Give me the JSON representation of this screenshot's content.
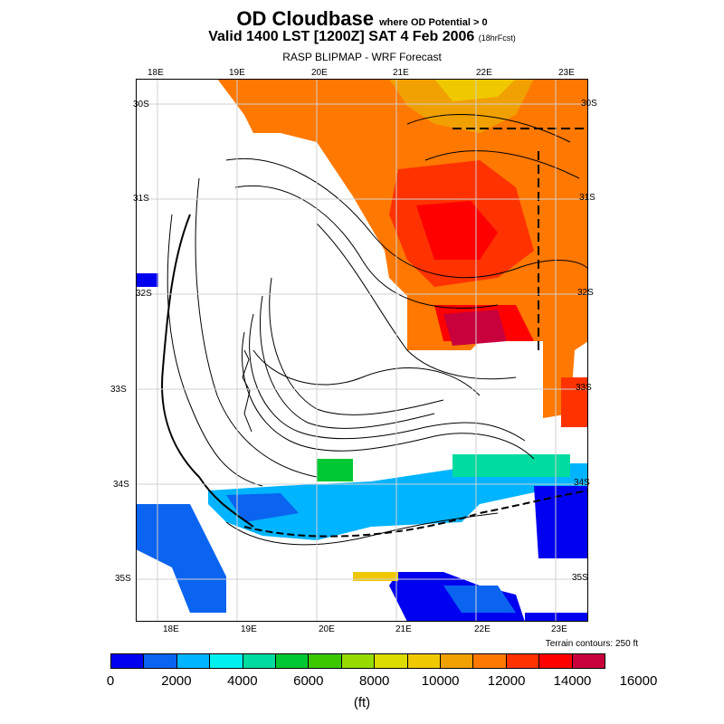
{
  "title": {
    "main": "OD Cloudbase",
    "qualifier": "where OD Potential > 0"
  },
  "valid": {
    "text": "Valid 1400 LST [1200Z] SAT 4 Feb 2006",
    "fcst": "(18hrFcst)"
  },
  "model": "RASP BLIPMAP - WRF Forecast",
  "map": {
    "lon_top": [
      "18E",
      "19E",
      "20E",
      "21E",
      "22E",
      "23E"
    ],
    "lon_bottom": [
      "18E",
      "19E",
      "20E",
      "21E",
      "22E",
      "23E"
    ],
    "lat_left": [
      "30S",
      "31S",
      "32S",
      "33S",
      "34S",
      "35S"
    ],
    "lat_right": [
      "30S",
      "31S",
      "32S",
      "33S",
      "34S",
      "35S"
    ],
    "terrain_note": "Terrain contours: 250 ft"
  },
  "colorbar": {
    "colors": [
      "#0000f0",
      "#0a64f0",
      "#00b4ff",
      "#00f0f0",
      "#00dca0",
      "#00c832",
      "#3cc800",
      "#96dc00",
      "#dcdc00",
      "#f0c800",
      "#f0a000",
      "#ff7800",
      "#ff3200",
      "#ff0000",
      "#c8003c"
    ],
    "labels": [
      "0",
      "2000",
      "4000",
      "6000",
      "8000",
      "10000",
      "12000",
      "14000",
      "16000"
    ],
    "unit": "(ft)"
  }
}
